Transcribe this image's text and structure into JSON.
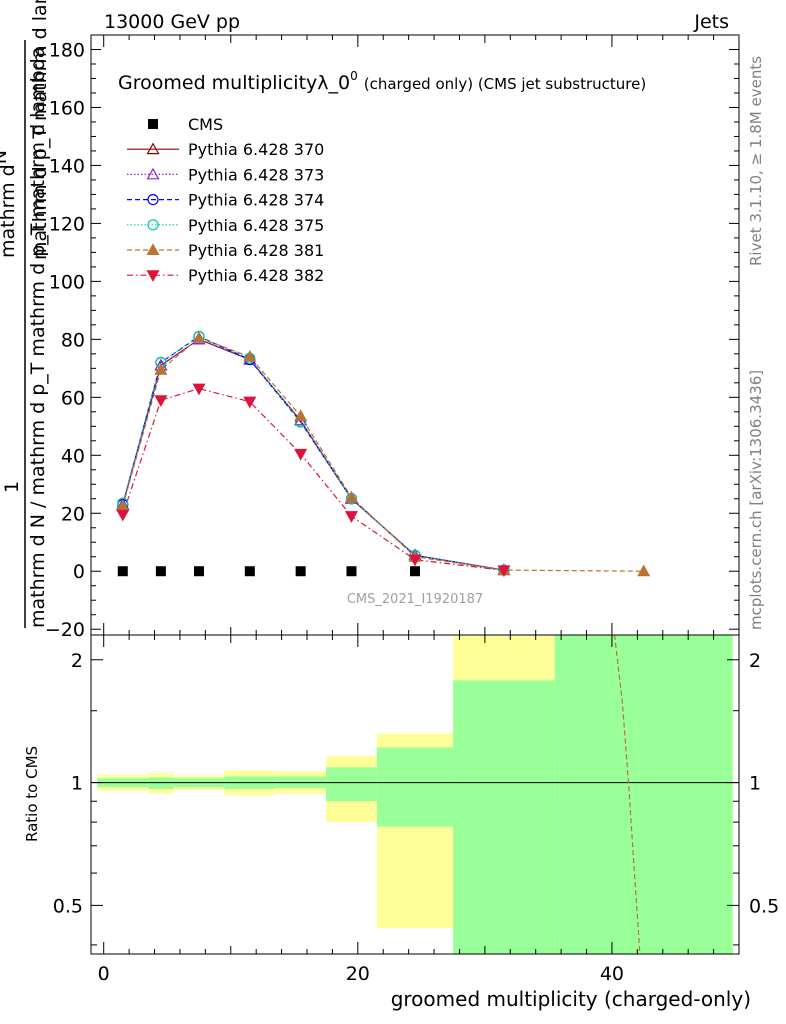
{
  "header": {
    "left": "13000 GeV pp",
    "right": "Jets"
  },
  "side_labels": {
    "rivet": "Rivet 3.1.10, ≥ 1.8M events",
    "mcplots": "mcplots.cern.ch [arXiv:1306.3436]"
  },
  "colors": {
    "cms": "#000000",
    "p370": "#8b0000",
    "p373": "#8a2be2",
    "p374": "#0000ff",
    "p375": "#00ccaa",
    "p381": "#b87333",
    "p382": "#dc143c",
    "band_yellow": "#ffff99",
    "band_green": "#99ff99"
  },
  "chart_data": [
    {
      "type": "line",
      "title": "Groomed multiplicityλ_0",
      "title_superscript": "0",
      "title_suffix": "(charged only) (CMS jet substructure)",
      "watermark": "CMS_2021_I1920187",
      "ylabel": "1 / mathrm d N / mathrm d p_T mathrm d N / mathrm d p_T mathrm d lambda",
      "ylabel_top": "mathrm d",
      "ylabel_top_N": "N",
      "ylabel_mid": "mathrm d p_T mathrm d lambda",
      "ylabel_one": "1",
      "ylabel_bottom": "mathrm d N / mathrm d p_T mathrm d p_T mathrm d lambda",
      "xlim": [
        -1,
        50
      ],
      "ylim": [
        -22,
        185
      ],
      "yticks": [
        -20,
        0,
        20,
        40,
        60,
        80,
        100,
        120,
        140,
        160,
        180
      ],
      "tick_labels": [
        "−20",
        "0",
        "20",
        "40",
        "60",
        "80",
        "100",
        "120",
        "140",
        "160",
        "180"
      ],
      "legend_position": "top-left",
      "series": [
        {
          "name": "CMS",
          "marker": "square",
          "line": "none",
          "x": [
            1.5,
            4.5,
            7.5,
            11.5,
            15.5,
            19.5,
            24.5
          ],
          "y": [
            0,
            0,
            0,
            0,
            0,
            0,
            0
          ]
        },
        {
          "name": "Pythia 6.428 370",
          "marker": "triangle-open",
          "line": "solid",
          "x": [
            1.5,
            4.5,
            7.5,
            11.5,
            15.5,
            19.5,
            24.5,
            31.5
          ],
          "y": [
            23,
            71,
            80,
            73,
            52,
            25,
            5.5,
            0.4
          ]
        },
        {
          "name": "Pythia 6.428 373",
          "marker": "triangle-open",
          "line": "dotted",
          "x": [
            1.5,
            4.5,
            7.5,
            11.5,
            15.5,
            19.5,
            24.5,
            31.5
          ],
          "y": [
            23,
            71,
            80,
            73,
            52,
            25,
            5.5,
            0.4
          ]
        },
        {
          "name": "Pythia 6.428 374",
          "marker": "circle-open",
          "line": "dashed",
          "x": [
            1.5,
            4.5,
            7.5,
            11.5,
            15.5,
            19.5,
            24.5,
            31.5
          ],
          "y": [
            23,
            72,
            81,
            73,
            51.5,
            25,
            5.5,
            0.4
          ]
        },
        {
          "name": "Pythia 6.428 375",
          "marker": "circle-open",
          "line": "dotted",
          "x": [
            1.5,
            4.5,
            7.5,
            11.5,
            15.5,
            19.5,
            24.5,
            31.5
          ],
          "y": [
            23.5,
            72,
            81,
            73.5,
            51.5,
            25,
            5.5,
            0.4
          ]
        },
        {
          "name": "Pythia 6.428 381",
          "marker": "triangle-filled",
          "line": "dashed",
          "x": [
            1.5,
            4.5,
            7.5,
            11.5,
            15.5,
            19.5,
            24.5,
            31.5,
            42.5
          ],
          "y": [
            22.5,
            69.5,
            80.5,
            74,
            53.5,
            25.5,
            5,
            0.4,
            0
          ]
        },
        {
          "name": "Pythia 6.428 382",
          "marker": "triangle-down-filled",
          "line": "dashdot",
          "x": [
            1.5,
            4.5,
            7.5,
            11.5,
            15.5,
            19.5,
            24.5,
            31.5
          ],
          "y": [
            19.5,
            59,
            63,
            58.5,
            40.5,
            19,
            4,
            0.3
          ]
        }
      ]
    },
    {
      "type": "area",
      "ylabel": "Ratio to CMS",
      "xlabel": "groomed multiplicity (charged-only)",
      "xlim": [
        -1,
        50
      ],
      "ylim": [
        0.38,
        2.3
      ],
      "xticks": [
        0,
        20,
        40
      ],
      "xtick_labels": [
        "0",
        "20",
        "40"
      ],
      "yticks": [
        0.5,
        1,
        2
      ],
      "ytick_labels": [
        "0.5",
        "1",
        "2"
      ],
      "reference_line": 1,
      "bins": [
        {
          "x0": -0.5,
          "x1": 3.5,
          "green": [
            0.975,
            1.025
          ],
          "yellow": [
            0.955,
            1.045
          ]
        },
        {
          "x0": 3.5,
          "x1": 5.5,
          "green": [
            0.965,
            1.03
          ],
          "yellow": [
            0.94,
            1.055
          ]
        },
        {
          "x0": 5.5,
          "x1": 9.5,
          "green": [
            0.975,
            1.025
          ],
          "yellow": [
            0.96,
            1.04
          ]
        },
        {
          "x0": 9.5,
          "x1": 13.5,
          "green": [
            0.965,
            1.035
          ],
          "yellow": [
            0.93,
            1.07
          ]
        },
        {
          "x0": 13.5,
          "x1": 17.5,
          "green": [
            0.97,
            1.035
          ],
          "yellow": [
            0.94,
            1.065
          ]
        },
        {
          "x0": 17.5,
          "x1": 21.5,
          "green": [
            0.9,
            1.09
          ],
          "yellow": [
            0.8,
            1.16
          ]
        },
        {
          "x0": 21.5,
          "x1": 27.5,
          "green": [
            0.78,
            1.22
          ],
          "yellow": [
            0.44,
            1.32
          ]
        },
        {
          "x0": 27.5,
          "x1": 35.5,
          "green": [
            0.38,
            1.78
          ],
          "yellow": [
            0.38,
            2.3
          ]
        },
        {
          "x0": 35.5,
          "x1": 49.5,
          "green": [
            0.38,
            2.3
          ],
          "yellow": [
            0.38,
            2.3
          ]
        }
      ],
      "ratio_curve": {
        "name": "Pythia 6.428 381",
        "x": [
          40.2,
          40.8,
          41.3,
          41.7,
          42.2
        ],
        "y": [
          2.3,
          1.6,
          1.0,
          0.65,
          0.38
        ]
      }
    }
  ]
}
